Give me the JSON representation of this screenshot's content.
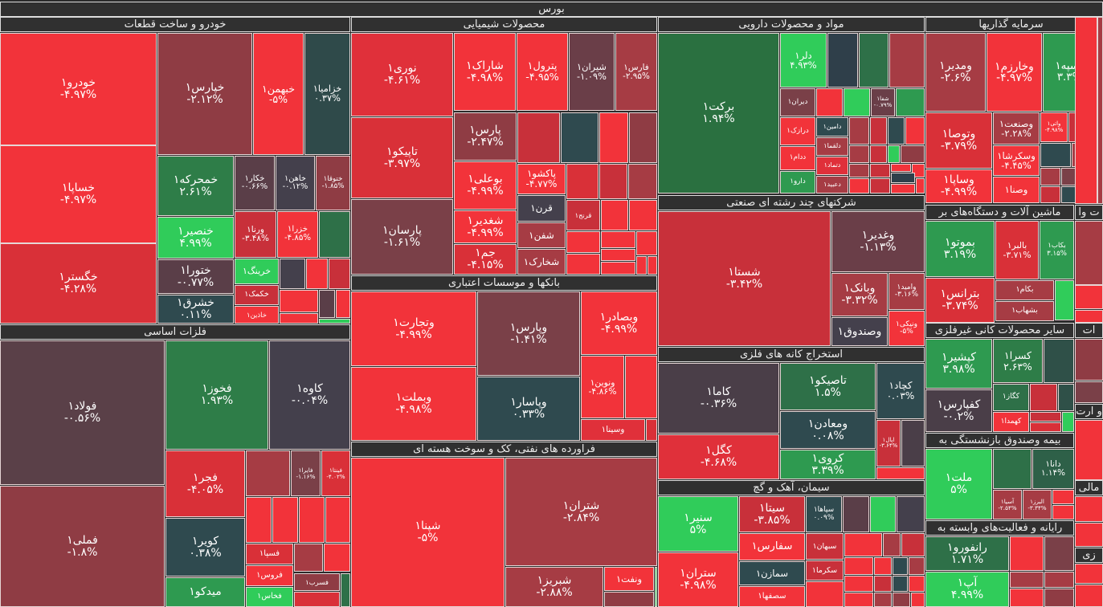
{
  "market_title": "بورس",
  "sectors": [
    {
      "title": "خودرو و ساخت قطعات",
      "tiles": [
        {
          "name": "خودرو۱",
          "pct": "-۴.۹۷%",
          "color": "#f2333a"
        },
        {
          "name": "خساپا۱",
          "pct": "-۴.۹۷%",
          "color": "#f2333a"
        },
        {
          "name": "خگستر۱",
          "pct": "-۴.۲۸%",
          "color": "#d93038"
        },
        {
          "name": "خپارس۱",
          "pct": "-۲.۱۲%",
          "color": "#8f3c44"
        },
        {
          "name": "خبهمن۱",
          "pct": "-۵%",
          "color": "#f2333a"
        },
        {
          "name": "خزامیا۱",
          "pct": "۰.۳۷%",
          "color": "#2f4a4a"
        },
        {
          "name": "خمحرکه۱",
          "pct": "۲.۶۱%",
          "color": "#2e7d48"
        },
        {
          "name": "خنصیر۱",
          "pct": "۴.۹۹%",
          "color": "#30cc5a"
        },
        {
          "name": "ختورا۱",
          "pct": "-۰.۷۷%",
          "color": "#5a3e48"
        },
        {
          "name": "خشرق۱",
          "pct": "۰.۱۱%",
          "color": "#2f4a4f"
        },
        {
          "name": "خکار۱",
          "pct": "-۰.۶۶%",
          "color": "#5a3e48"
        },
        {
          "name": "خاهن۱",
          "pct": "-۰.۱۲%",
          "color": "#44404c"
        },
        {
          "name": "ختوقا۱",
          "pct": "-۱.۸۵%",
          "color": "#8f3c44"
        },
        {
          "name": "ورنا۱",
          "pct": "-۳.۴۸%",
          "color": "#c8303a"
        },
        {
          "name": "خزرا۱",
          "pct": "-۴.۸۵%",
          "color": "#f2333a"
        },
        {
          "name": "خرینگ۱",
          "color": "#30cc5a"
        },
        {
          "name": "خکمک۱",
          "color": "#c8303a"
        },
        {
          "name": "خاذین۱",
          "color": "#f2333a"
        }
      ]
    },
    {
      "title": "فلزات اساسی",
      "tiles": [
        {
          "name": "فولاد۱",
          "pct": "-۰.۵۶%",
          "color": "#5a4048"
        },
        {
          "name": "فملی۱",
          "pct": "-۱.۸%",
          "color": "#8f3c44"
        },
        {
          "name": "فخوز۱",
          "pct": "۱.۹۳%",
          "color": "#2e7d48"
        },
        {
          "name": "کاوه۱",
          "pct": "-۰.۰۴%",
          "color": "#44404c"
        },
        {
          "name": "فجر۱",
          "pct": "-۴.۰۵%",
          "color": "#d93038"
        },
        {
          "name": "کویر۱",
          "pct": "۰.۳۸%",
          "color": "#2f4a4f"
        },
        {
          "name": "میدکو۱",
          "color": "#2e9a50"
        },
        {
          "name": "فایرا۱",
          "pct": "-۱.۱۶%",
          "color": "#7a4048"
        },
        {
          "name": "فینتا۱",
          "pct": "-۴.۰۲%",
          "color": "#d93038"
        },
        {
          "name": "فسپا۱",
          "color": "#d93038"
        },
        {
          "name": "فروس۱",
          "color": "#f2333a"
        },
        {
          "name": "فسرب۱",
          "color": "#8f3c44"
        },
        {
          "name": "فخاس۱",
          "color": "#30cc5a"
        }
      ]
    },
    {
      "title": "محصولات شیمیایی",
      "tiles": [
        {
          "name": "نوری۱",
          "pct": "-۴.۶۱%",
          "color": "#e0303a"
        },
        {
          "name": "تاپیکو۱",
          "pct": "-۳.۹۷%",
          "color": "#d93038"
        },
        {
          "name": "پارسان۱",
          "pct": "-۱.۶۱%",
          "color": "#7a4048"
        },
        {
          "name": "شاراک۱",
          "pct": "-۴.۹۸%",
          "color": "#f2333a"
        },
        {
          "name": "پترول۱",
          "pct": "-۴.۹۵%",
          "color": "#f2333a"
        },
        {
          "name": "شیران۱",
          "pct": "-۱.۰۹%",
          "color": "#6a3e48"
        },
        {
          "name": "فارس۱",
          "pct": "-۲.۹۵%",
          "color": "#a63c44"
        },
        {
          "name": "پارس۱",
          "pct": "-۲.۴۷%",
          "color": "#8f3c44"
        },
        {
          "name": "بوعلی۱",
          "pct": "-۴.۹۹%",
          "color": "#f2333a"
        },
        {
          "name": "شغدیر۱",
          "pct": "-۴.۹۹%",
          "color": "#f2333a"
        },
        {
          "name": "جم۱",
          "pct": "-۴.۱۵%",
          "color": "#d93038"
        },
        {
          "name": "پاکشو۱",
          "pct": "-۴.۷۷%",
          "color": "#f2333a"
        },
        {
          "name": "قرن۱",
          "color": "#44404c"
        },
        {
          "name": "شفن۱",
          "color": "#a63c44"
        },
        {
          "name": "شخارک۱",
          "color": "#a63c44"
        },
        {
          "name": "قرنج۱",
          "color": "#c8303a"
        }
      ]
    },
    {
      "title": "بانکها و موسسات اعتباری",
      "tiles": [
        {
          "name": "وتجارت۱",
          "pct": "-۴.۹۹%",
          "color": "#f2333a"
        },
        {
          "name": "وبملت۱",
          "pct": "-۴.۹۸%",
          "color": "#f2333a"
        },
        {
          "name": "وپارس۱",
          "pct": "-۱.۴۱%",
          "color": "#7a4048"
        },
        {
          "name": "وپاسار۱",
          "pct": "۰.۳۳%",
          "color": "#2f4a4f"
        },
        {
          "name": "وبصادر۱",
          "pct": "-۴.۹۹%",
          "color": "#f2333a"
        },
        {
          "name": "ونوین۱",
          "pct": "-۴.۸۶%",
          "color": "#f2333a"
        },
        {
          "name": "وسینا۱",
          "color": "#e0303a"
        }
      ]
    },
    {
      "title": "فراورده های نفتی، کک و سوخت هسته ای",
      "tiles": [
        {
          "name": "شپنا۱",
          "pct": "-۵%",
          "color": "#f2333a"
        },
        {
          "name": "شتران۱",
          "pct": "-۲.۸۴%",
          "color": "#a63c44"
        },
        {
          "name": "شبریز۱",
          "pct": "-۲.۸۸%",
          "color": "#a63c44"
        },
        {
          "name": "ونفت۱",
          "color": "#f2333a"
        }
      ]
    },
    {
      "title": "مواد و محصولات دارویی",
      "tiles": [
        {
          "name": "برکت۱",
          "pct": "۱.۹۴%",
          "color": "#2a7040"
        },
        {
          "name": "دلر۱",
          "pct": "۴.۹۳%",
          "color": "#30cc5a"
        },
        {
          "name": "دیران۱",
          "color": "#7a4048"
        },
        {
          "name": "شفا۱",
          "pct": "-۰.۷۹%",
          "color": "#6a3e48"
        },
        {
          "name": "درازک۱",
          "color": "#f2333a"
        },
        {
          "name": "دامین۱",
          "color": "#2f4a4f"
        },
        {
          "name": "ددام۱",
          "color": "#f2333a"
        },
        {
          "name": "دلقما۱",
          "color": "#a63c44"
        },
        {
          "name": "دتماد۱",
          "color": "#e0303a"
        },
        {
          "name": "دعبید۱",
          "color": "#a63c44"
        },
        {
          "name": "دارو۱",
          "color": "#2e9a50"
        }
      ]
    },
    {
      "title": "شرکتهای چند رشته ای صنعتی",
      "tiles": [
        {
          "name": "شستا۱",
          "pct": "-۳.۴۲%",
          "color": "#c8303a"
        },
        {
          "name": "وغدیر۱",
          "pct": "-۱.۱۳%",
          "color": "#6a3e48"
        },
        {
          "name": "وبانک۱",
          "pct": "-۳.۳۲%",
          "color": "#a63c44"
        },
        {
          "name": "وامید۱",
          "pct": "-۳.۱۶%",
          "color": "#a63c44"
        },
        {
          "name": "وصندوق۱",
          "color": "#44404c"
        },
        {
          "name": "ونیکی۱",
          "pct": "-۵%",
          "color": "#f2333a"
        }
      ]
    },
    {
      "title": "استخراج کانه های فلزی",
      "tiles": [
        {
          "name": "کاما۱",
          "pct": "-۰.۳۶%",
          "color": "#4a3e48"
        },
        {
          "name": "کگل۱",
          "pct": "-۴.۶۸%",
          "color": "#e0303a"
        },
        {
          "name": "تاصیکو۱",
          "pct": "۱.۵%",
          "color": "#2e7048"
        },
        {
          "name": "ومعادن۱",
          "pct": "۰.۰۸%",
          "color": "#2f4a4f"
        },
        {
          "name": "کروی۱",
          "pct": "۳.۳۹%",
          "color": "#2e9a50"
        },
        {
          "name": "کچاد۱",
          "pct": "۰.۰۳%",
          "color": "#2f4a4f"
        },
        {
          "name": "اپال۱",
          "pct": "-۳.۶۴%",
          "color": "#c8303a"
        }
      ]
    },
    {
      "title": "سیمان، آهک و گچ",
      "tiles": [
        {
          "name": "سنیر۱",
          "pct": "۵%",
          "color": "#30cc5a"
        },
        {
          "name": "ستران۱",
          "pct": "-۴.۹۸%",
          "color": "#f2333a"
        },
        {
          "name": "سیتا۱",
          "pct": "-۳.۸۵%",
          "color": "#c8303a"
        },
        {
          "name": "سفارس۱",
          "color": "#f2333a"
        },
        {
          "name": "سمازن۱",
          "color": "#2f4a4f"
        },
        {
          "name": "سصفها۱",
          "color": "#f2333a"
        },
        {
          "name": "سپاها۱",
          "pct": "۰.۰۹%",
          "color": "#2f4a4f"
        },
        {
          "name": "سبهان۱",
          "color": "#c8303a"
        },
        {
          "name": "سکرما۱",
          "color": "#c8303a"
        }
      ]
    },
    {
      "title": "سرمایه گذاریها",
      "tiles": [
        {
          "name": "ومدیر۱",
          "pct": "-۲.۶%",
          "color": "#a63c44"
        },
        {
          "name": "وخارزم۱",
          "pct": "-۴.۹۷%",
          "color": "#f2333a"
        },
        {
          "name": "وسپه۱",
          "pct": "۳.۳%",
          "color": "#2e9a50"
        },
        {
          "name": "وتوصا۱",
          "pct": "-۳.۷۹%",
          "color": "#d93038"
        },
        {
          "name": "وساپا۱",
          "pct": "-۴.۹۹%",
          "color": "#f2333a"
        },
        {
          "name": "وصنعت۱",
          "pct": "-۲.۲۸%",
          "color": "#a63c44"
        },
        {
          "name": "وسکرشا۱",
          "pct": "-۴.۴۵%",
          "color": "#f2333a"
        },
        {
          "name": "وصنا۱",
          "color": "#f2333a"
        },
        {
          "name": "واتی۱",
          "pct": "-۴.۹۸%",
          "color": "#f2333a"
        }
      ]
    },
    {
      "title": "ماشین آلات و دستگاه‌های بر",
      "tiles": [
        {
          "name": "بموتو۱",
          "pct": "۳.۱۹%",
          "color": "#2e9a50"
        },
        {
          "name": "بترانس۱",
          "pct": "-۳.۷۴%",
          "color": "#d93038"
        },
        {
          "name": "بالبر۱",
          "pct": "-۳.۷۱%",
          "color": "#d93038"
        },
        {
          "name": "بکاب۱",
          "pct": "۳.۱۵%",
          "color": "#2e9a50"
        },
        {
          "name": "بکام۱",
          "color": "#a63c44"
        },
        {
          "name": "بشهاب۱",
          "color": "#a63c44"
        }
      ]
    },
    {
      "title": "سایر محصولات کانی غیرفلزی",
      "tiles": [
        {
          "name": "کپشیر۱",
          "pct": "۳.۹۸%",
          "color": "#2e9a50"
        },
        {
          "name": "کفپارس۱",
          "pct": "-۰.۲%",
          "color": "#4a3e48"
        },
        {
          "name": "کسرا۱",
          "pct": "۲.۶۳%",
          "color": "#2e7d48"
        },
        {
          "name": "کگاز۱",
          "color": "#2e7048"
        },
        {
          "name": "کهمدا۱",
          "color": "#f2333a"
        }
      ]
    },
    {
      "title": "بیمه وصندوق بازنشستگی به",
      "tiles": [
        {
          "name": "ملت۱",
          "pct": "۵%",
          "color": "#30cc5a"
        },
        {
          "name": "دانا۱",
          "pct": "۱.۱۴%",
          "color": "#2e6048"
        },
        {
          "name": "آسیا۱",
          "pct": "-۲.۵۴%",
          "color": "#a63c44"
        },
        {
          "name": "البرز۱",
          "pct": "-۳.۳۴%",
          "color": "#a63c44"
        }
      ]
    },
    {
      "title": "رایانه و فعالیت‌های وابسته به",
      "tiles": [
        {
          "name": "رانفورو۱",
          "pct": "۱.۷۱%",
          "color": "#2e7048"
        },
        {
          "name": "آپ۱",
          "pct": "۴.۹۹%",
          "color": "#30cc5a"
        }
      ]
    },
    {
      "title": "ت وا",
      "tiles": []
    },
    {
      "title": "ات",
      "tiles": []
    },
    {
      "title": "و ارت",
      "tiles": []
    },
    {
      "title": "مالی",
      "tiles": []
    },
    {
      "title": "زی",
      "tiles": []
    }
  ]
}
